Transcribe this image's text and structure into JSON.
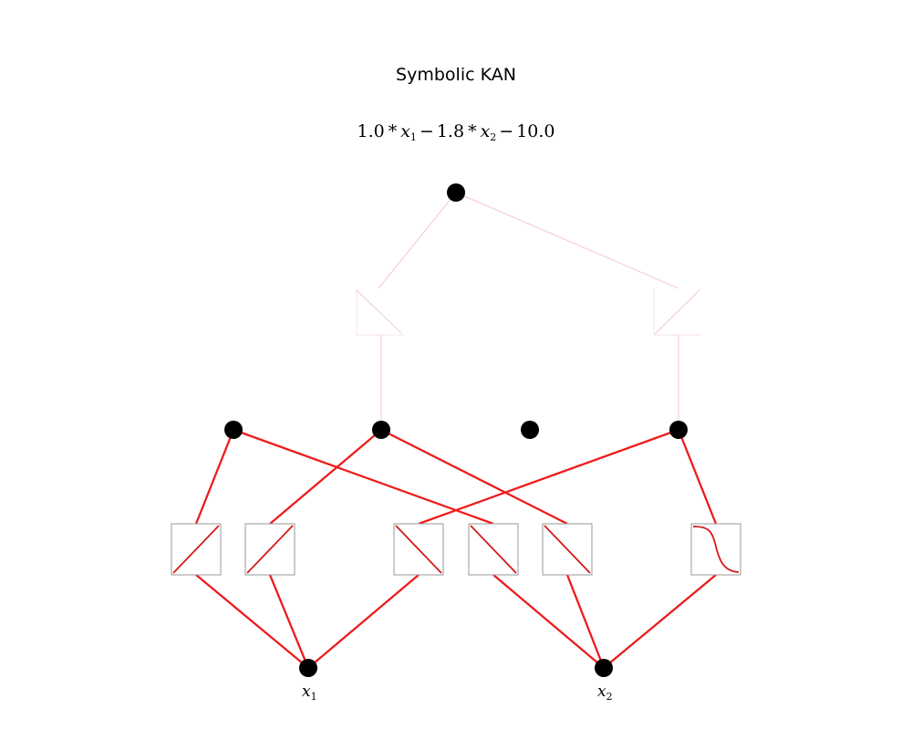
{
  "title": "Symbolic KAN",
  "formula": {
    "coef1": "1.0",
    "op1": "*",
    "var1": "x",
    "sub1": "1",
    "minus1": "−",
    "coef2": "1.8",
    "op2": "*",
    "var2": "x",
    "sub2": "2",
    "minus2": "−",
    "const": "10.0"
  },
  "inputs": [
    {
      "name": "x",
      "sub": "1"
    },
    {
      "name": "x",
      "sub": "2"
    }
  ],
  "colors": {
    "node": "#000000",
    "edge_strong": "#ee1c1c",
    "edge_faint": "#f6c8c8",
    "box_border": "#888888",
    "curve": "#d41b1b"
  },
  "layers": {
    "input_nodes": 2,
    "hidden_nodes": 4,
    "output_nodes": 1
  },
  "activations_layer1": [
    {
      "from_input": 1,
      "to_hidden": 1,
      "shape": "linear-increasing",
      "strength": "strong"
    },
    {
      "from_input": 1,
      "to_hidden": 2,
      "shape": "linear-increasing",
      "strength": "strong"
    },
    {
      "from_input": 1,
      "to_hidden": 4,
      "shape": "linear-decreasing",
      "strength": "strong"
    },
    {
      "from_input": 2,
      "to_hidden": 1,
      "shape": "linear-decreasing",
      "strength": "strong"
    },
    {
      "from_input": 2,
      "to_hidden": 2,
      "shape": "linear-decreasing",
      "strength": "strong"
    },
    {
      "from_input": 2,
      "to_hidden": 4,
      "shape": "sigmoid-decreasing",
      "strength": "strong"
    }
  ],
  "activations_layer2": [
    {
      "from_hidden": 2,
      "to_output": 1,
      "shape": "linear-increasing",
      "strength": "faint"
    },
    {
      "from_hidden": 4,
      "to_output": 1,
      "shape": "linear-decreasing",
      "strength": "faint"
    }
  ]
}
